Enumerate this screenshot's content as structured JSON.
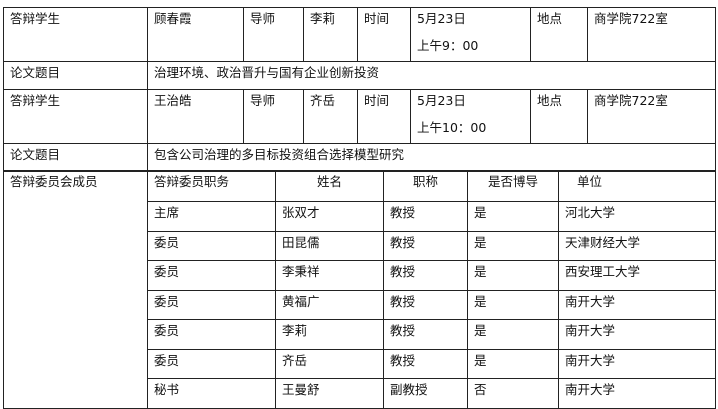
{
  "sessions": [
    {
      "student_label": "答辩学生",
      "student": "顾春霞",
      "advisor_label": "导师",
      "advisor": "李莉",
      "time_label": "时间",
      "date": "5月23日",
      "time": "上午9：00",
      "place_label": "地点",
      "place": "商学院722室",
      "title_label": "论文题目",
      "title": "治理环境、政治晋升与国有企业创新投资"
    },
    {
      "student_label": "答辩学生",
      "student": "王治皓",
      "advisor_label": "导师",
      "advisor": "齐岳",
      "time_label": "时间",
      "date": "5月23日",
      "time": "上午10：00",
      "place_label": "地点",
      "place": "商学院722室",
      "title_label": "论文题目",
      "title": "包含公司治理的多目标投资组合选择模型研究"
    }
  ],
  "committee": {
    "label": "答辩委员会成员",
    "headers": [
      "答辩委员职务",
      "姓名",
      "职称",
      "是否博导",
      "单位"
    ],
    "rows": [
      [
        "主席",
        "张双才",
        "教授",
        "是",
        "河北大学"
      ],
      [
        "委员",
        "田昆儒",
        "教授",
        "是",
        "天津财经大学"
      ],
      [
        "委员",
        "李秉祥",
        "教授",
        "是",
        "西安理工大学"
      ],
      [
        "委员",
        "黄福广",
        "教授",
        "是",
        "南开大学"
      ],
      [
        "委员",
        "李莉",
        "教授",
        "是",
        "南开大学"
      ],
      [
        "委员",
        "齐岳",
        "教授",
        "是",
        "南开大学"
      ],
      [
        "秘书",
        "王曼舒",
        "副教授",
        "否",
        "南开大学"
      ]
    ]
  }
}
